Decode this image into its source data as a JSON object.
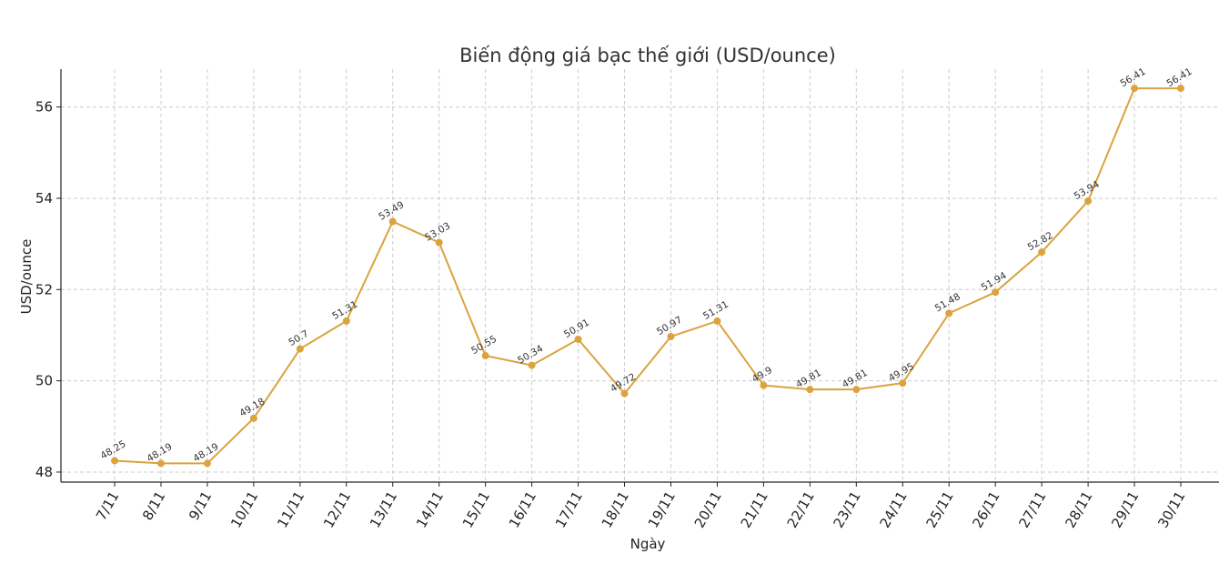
{
  "chart_data": {
    "type": "line",
    "title": "Biến động giá bạc thế giới (USD/ounce)",
    "xlabel": "Ngày",
    "ylabel": "USD/ounce",
    "categories": [
      "7/11",
      "8/11",
      "9/11",
      "10/11",
      "11/11",
      "12/11",
      "13/11",
      "14/11",
      "15/11",
      "16/11",
      "17/11",
      "18/11",
      "19/11",
      "20/11",
      "21/11",
      "22/11",
      "23/11",
      "24/11",
      "25/11",
      "26/11",
      "27/11",
      "28/11",
      "29/11",
      "30/11"
    ],
    "values": [
      48.25,
      48.19,
      48.19,
      49.18,
      50.7,
      51.31,
      53.49,
      53.03,
      50.55,
      50.34,
      50.91,
      49.72,
      50.97,
      51.31,
      49.9,
      49.81,
      49.81,
      49.95,
      51.48,
      51.94,
      52.82,
      53.94,
      56.41,
      56.41
    ],
    "data_labels": [
      "48.25",
      "48.19",
      "48.19",
      "49.18",
      "50.7",
      "51.31",
      "53.49",
      "53.03",
      "50.55",
      "50.34",
      "50.91",
      "49.72",
      "50.97",
      "51.31",
      "49.9",
      "49.81",
      "49.81",
      "49.95",
      "51.48",
      "51.94",
      "52.82",
      "53.94",
      "56.41",
      "56.41"
    ],
    "yticks": [
      48,
      50,
      52,
      54,
      56
    ],
    "ytick_labels": [
      "48",
      "50",
      "52",
      "54",
      "56"
    ],
    "ylim": [
      47.78,
      56.83
    ],
    "grid": true,
    "line_color": "#DAA33E"
  }
}
